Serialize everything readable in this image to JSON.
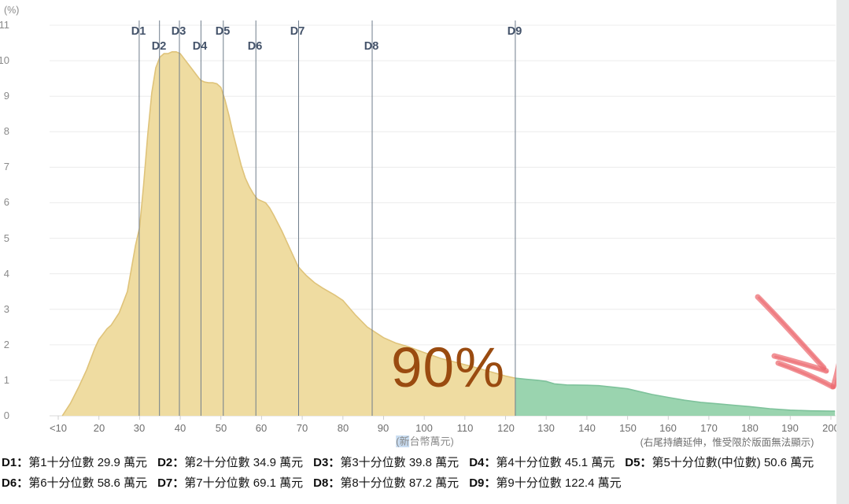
{
  "chart": {
    "y_axis_unit": "(%)",
    "annotation": "90%",
    "annotation_color": "#9a4b10",
    "x_axis_note_highlight": "(新",
    "x_axis_note_rest": "台幣萬元)",
    "right_note": "(右尾持續延伸，惟受限於版面無法顯示)",
    "colon": "：",
    "unit_suffix": "萬元",
    "deciles": [
      {
        "id": "D1",
        "desc": "第1十分位數",
        "value": "29.9",
        "label_row": 1
      },
      {
        "id": "D2",
        "desc": "第2十分位數",
        "value": "34.9",
        "label_row": 2
      },
      {
        "id": "D3",
        "desc": "第3十分位數",
        "value": "39.8",
        "label_row": 1
      },
      {
        "id": "D4",
        "desc": "第4十分位數",
        "value": "45.1",
        "label_row": 2
      },
      {
        "id": "D5",
        "desc": "第5十分位數(中位數)",
        "value": "50.6",
        "label_row": 1
      },
      {
        "id": "D6",
        "desc": "第6十分位數",
        "value": "58.6",
        "label_row": 2
      },
      {
        "id": "D7",
        "desc": "第7十分位數",
        "value": "69.1",
        "label_row": 1
      },
      {
        "id": "D8",
        "desc": "第8十分位數",
        "value": "87.2",
        "label_row": 2
      },
      {
        "id": "D9",
        "desc": "第9十分位數",
        "value": "122.4",
        "label_row": 1
      }
    ],
    "legend_row1_ids": [
      "D1",
      "D2",
      "D3",
      "D4",
      "D5"
    ],
    "legend_row2_ids": [
      "D6",
      "D7",
      "D8",
      "D9"
    ]
  },
  "chart_data": {
    "type": "area",
    "title": "",
    "xlabel": "(新台幣萬元)",
    "ylabel": "(%)",
    "x_range": [
      10,
      201
    ],
    "y_range": [
      0,
      11
    ],
    "grid": true,
    "y_ticks": [
      0,
      1,
      2,
      3,
      4,
      5,
      6,
      7,
      8,
      9,
      10,
      11
    ],
    "x_tick_labels": [
      "<10",
      "20",
      "30",
      "40",
      "50",
      "60",
      "70",
      "80",
      "90",
      "100",
      "110",
      "120",
      "130",
      "140",
      "150",
      "160",
      "170",
      "180",
      "190",
      "200"
    ],
    "x_tick_values": [
      10,
      20,
      30,
      40,
      50,
      60,
      70,
      80,
      90,
      100,
      110,
      120,
      130,
      140,
      150,
      160,
      170,
      180,
      190,
      200
    ],
    "split_x": 122.4,
    "left_area_share": "90%",
    "x": [
      11,
      13,
      15,
      17,
      19,
      20,
      21,
      22,
      23,
      25,
      27,
      29,
      30,
      31,
      32,
      33,
      34,
      35,
      36,
      37,
      38,
      39,
      40,
      41,
      42,
      43,
      44,
      45,
      46,
      47,
      48,
      49,
      50,
      51,
      52,
      53,
      54,
      55,
      56,
      57,
      58,
      59,
      60,
      61,
      62,
      63,
      65,
      67,
      69,
      71,
      73,
      75,
      78,
      80,
      83,
      86,
      88,
      90,
      93,
      96,
      100,
      104,
      108,
      112,
      116,
      120,
      122.4,
      125,
      128,
      130,
      132,
      135,
      140,
      143,
      147,
      150,
      153,
      156,
      160,
      164,
      168,
      172,
      176,
      180,
      185,
      190,
      195,
      200,
      201
    ],
    "y": [
      0,
      0.35,
      0.8,
      1.3,
      1.9,
      2.15,
      2.3,
      2.45,
      2.55,
      2.9,
      3.5,
      4.8,
      5.3,
      6.5,
      7.9,
      9.1,
      9.8,
      10.1,
      10.2,
      10.2,
      10.25,
      10.25,
      10.2,
      10.05,
      9.9,
      9.75,
      9.6,
      9.45,
      9.4,
      9.38,
      9.38,
      9.35,
      9.25,
      8.9,
      8.45,
      7.95,
      7.5,
      7.05,
      6.7,
      6.45,
      6.25,
      6.1,
      6.05,
      6.0,
      5.85,
      5.65,
      5.2,
      4.7,
      4.2,
      3.95,
      3.75,
      3.6,
      3.4,
      3.25,
      2.85,
      2.5,
      2.35,
      2.2,
      2.05,
      1.95,
      1.78,
      1.62,
      1.5,
      1.38,
      1.25,
      1.12,
      1.06,
      1.03,
      1.0,
      0.97,
      0.9,
      0.87,
      0.86,
      0.85,
      0.8,
      0.76,
      0.68,
      0.6,
      0.52,
      0.44,
      0.38,
      0.34,
      0.3,
      0.26,
      0.2,
      0.16,
      0.14,
      0.13,
      0.13
    ],
    "decile_values": [
      29.9,
      34.9,
      39.8,
      45.1,
      50.6,
      58.6,
      69.1,
      87.2,
      122.4
    ],
    "colors": {
      "left_fill": "#efdca1",
      "left_edge": "#dfc37a",
      "right_fill": "#9ad4af",
      "right_edge": "#7ec29b",
      "decile_line": "#6f7d8c",
      "grid": "#ececec",
      "axis": "#d8d8d8",
      "tick": "#cfcfcf",
      "arrow": "#ec6a6f"
    }
  }
}
